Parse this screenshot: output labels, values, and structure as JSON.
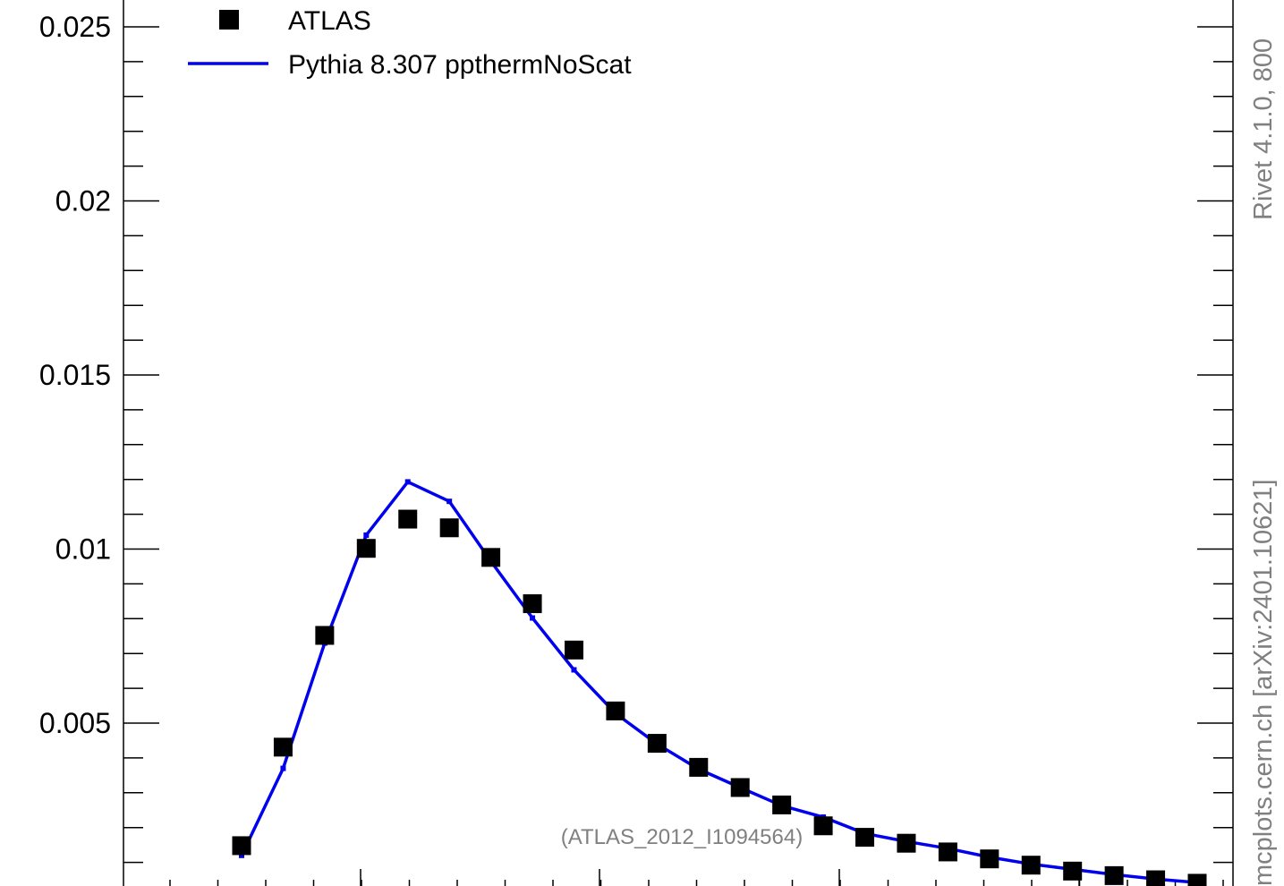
{
  "chart_data": {
    "type": "scatter",
    "ylim": [
      0.0008,
      0.026
    ],
    "xlim": [
      -0.7,
      24.3
    ],
    "y_major_ticks": [
      0.005,
      0.01,
      0.015,
      0.02,
      0.025
    ],
    "y_tick_labels": [
      "0.005",
      "0.01",
      "0.015",
      "0.02",
      "0.025"
    ],
    "series": [
      {
        "name": "ATLAS",
        "marker": "square",
        "color": "#000000",
        "x": [
          1,
          2,
          3,
          4,
          5,
          6,
          7,
          8,
          9,
          10,
          11,
          12,
          13,
          14,
          15,
          16,
          17,
          18,
          19,
          20,
          21,
          22,
          23,
          24
        ],
        "values": [
          0.00148,
          0.00431,
          0.00752,
          0.01002,
          0.01086,
          0.01061,
          0.00976,
          0.00843,
          0.0071,
          0.00535,
          0.00442,
          0.00373,
          0.00315,
          0.00265,
          0.00205,
          0.00172,
          0.00155,
          0.0013,
          0.0011,
          0.00092,
          0.00075,
          0.00062,
          0.0005,
          0.0004
        ]
      },
      {
        "name": "Pythia 8.307 ppthermNoScat",
        "marker": "line",
        "color": "#0000ee",
        "x": [
          1,
          2,
          3,
          4,
          5,
          6,
          7,
          8,
          9,
          10,
          11,
          12,
          13,
          14,
          15,
          16,
          17,
          18,
          19,
          20,
          21,
          22,
          23,
          24
        ],
        "values": [
          0.0012,
          0.0037,
          0.0073,
          0.0104,
          0.01193,
          0.01137,
          0.00965,
          0.00802,
          0.00653,
          0.00528,
          0.0044,
          0.00368,
          0.00315,
          0.00263,
          0.0023,
          0.00183,
          0.0016,
          0.0014,
          0.00115,
          0.00095,
          0.0008,
          0.00065,
          0.00052,
          0.00042
        ]
      }
    ]
  },
  "legend": {
    "entries": [
      {
        "label": "ATLAS"
      },
      {
        "label": "Pythia 8.307 ppthermNoScat"
      }
    ]
  },
  "annotation": "(ATLAS_2012_I1094564)",
  "side_text": {
    "top": "Rivet 4.1.0,  800",
    "bottom": "mcplots.cern.ch [arXiv:2401.10621]"
  },
  "colors": {
    "data": "#000000",
    "mc": "#0000ee",
    "annotation": "#808080"
  }
}
